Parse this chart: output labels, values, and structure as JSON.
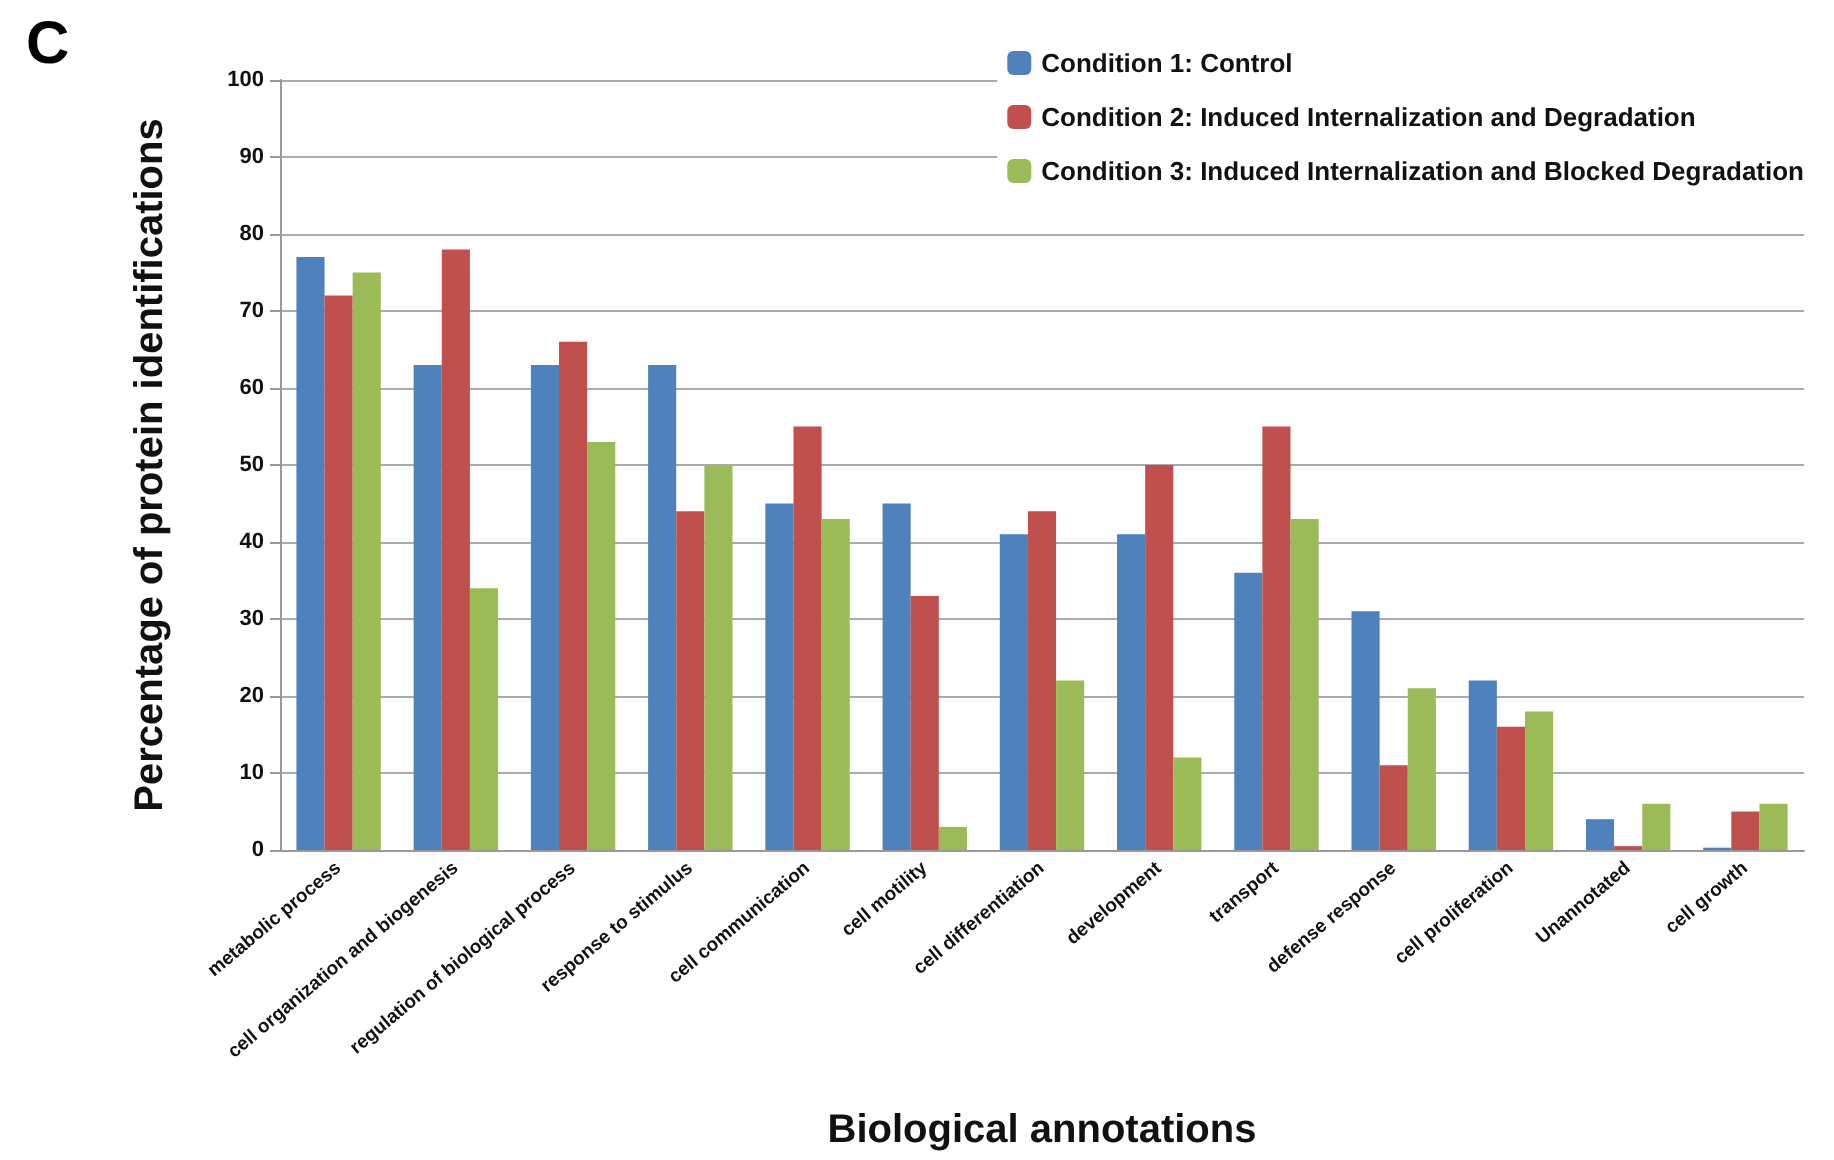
{
  "chart_data": {
    "type": "bar",
    "title": "C",
    "xlabel": "Biological annotations",
    "ylabel": "Percentage of protein identifications",
    "categories": [
      "metabolic process",
      "cell organization and biogenesis",
      "regulation of biological process",
      "response to stimulus",
      "cell communication",
      "cell motility",
      "cell differentiation",
      "development",
      "transport",
      "defense response",
      "cell proliferation",
      "Unannotated",
      "cell growth"
    ],
    "series": [
      {
        "name": "Condition 1: Control",
        "color": "#4f81bd",
        "values": [
          77,
          63,
          63,
          63,
          45,
          45,
          41,
          41,
          36,
          31,
          22,
          4,
          0.3
        ]
      },
      {
        "name": "Condition 2: Induced Internalization and Degradation",
        "color": "#c0504d",
        "values": [
          72,
          78,
          66,
          44,
          55,
          33,
          44,
          50,
          55,
          11,
          16,
          0.5,
          5
        ]
      },
      {
        "name": "Condition 3: Induced Internalization and Blocked Degradation",
        "color": "#9bbb59",
        "values": [
          75,
          34,
          53,
          50,
          43,
          3,
          22,
          12,
          43,
          21,
          18,
          6,
          6
        ]
      }
    ],
    "ylim": [
      0,
      100
    ],
    "yticks": [
      0,
      10,
      20,
      30,
      40,
      50,
      60,
      70,
      80,
      90,
      100
    ],
    "grid": "y",
    "legend": "top right"
  }
}
